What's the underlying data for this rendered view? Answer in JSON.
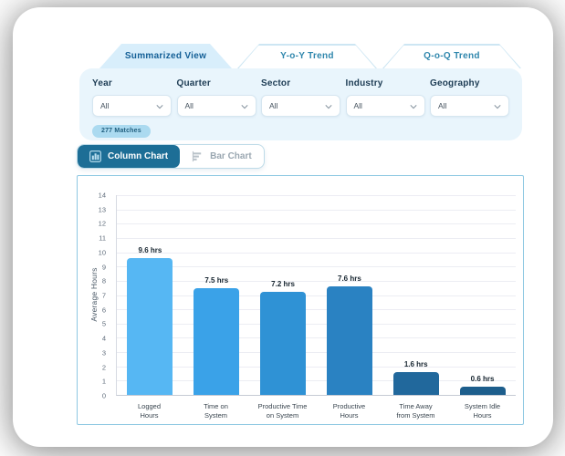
{
  "tabs": [
    {
      "label": "Summarized View",
      "active": true
    },
    {
      "label": "Y-o-Y Trend",
      "active": false
    },
    {
      "label": "Q-o-Q Trend",
      "active": false
    }
  ],
  "filters": {
    "fields": [
      {
        "label": "Year",
        "value": "All"
      },
      {
        "label": "Quarter",
        "value": "All"
      },
      {
        "label": "Sector",
        "value": "All"
      },
      {
        "label": "Industry",
        "value": "All"
      },
      {
        "label": "Geography",
        "value": "All"
      }
    ],
    "matches_badge": "277 Matches"
  },
  "chart_toggle": {
    "column_label": "Column Chart",
    "bar_label": "Bar Chart",
    "active": "column"
  },
  "chart_data": {
    "type": "bar",
    "title": "",
    "categories": [
      "Logged Hours",
      "Time on System",
      "Productive Time on System",
      "Productive Hours",
      "Time Away from System",
      "System Idle Hours"
    ],
    "tick_labels": [
      "Logged\nHours",
      "Time on\nSystem",
      "Productive Time\non System",
      "Productive\nHours",
      "Time Away\nfrom System",
      "System Idle\nHours"
    ],
    "values": [
      9.6,
      7.5,
      7.2,
      7.6,
      1.6,
      0.6
    ],
    "value_labels": [
      "9.6 hrs",
      "7.5 hrs",
      "7.2 hrs",
      "7.6 hrs",
      "1.6 hrs",
      "0.6 hrs"
    ],
    "bar_colors": [
      "#56b7f3",
      "#3aa2e8",
      "#2f92d5",
      "#2a82c2",
      "#21689c",
      "#1d5e8c"
    ],
    "xlabel": "",
    "ylabel": "Average Hours",
    "ylim": [
      0,
      14
    ],
    "ytick_step": 1,
    "grid": true,
    "legend": false
  },
  "colors": {
    "accent_dark": "#1d6e96",
    "tab_active_bg": "#d8eefb",
    "panel_bg": "#e9f5fc",
    "chart_border": "#8ec8e2",
    "badge_bg": "#abdaf0"
  }
}
